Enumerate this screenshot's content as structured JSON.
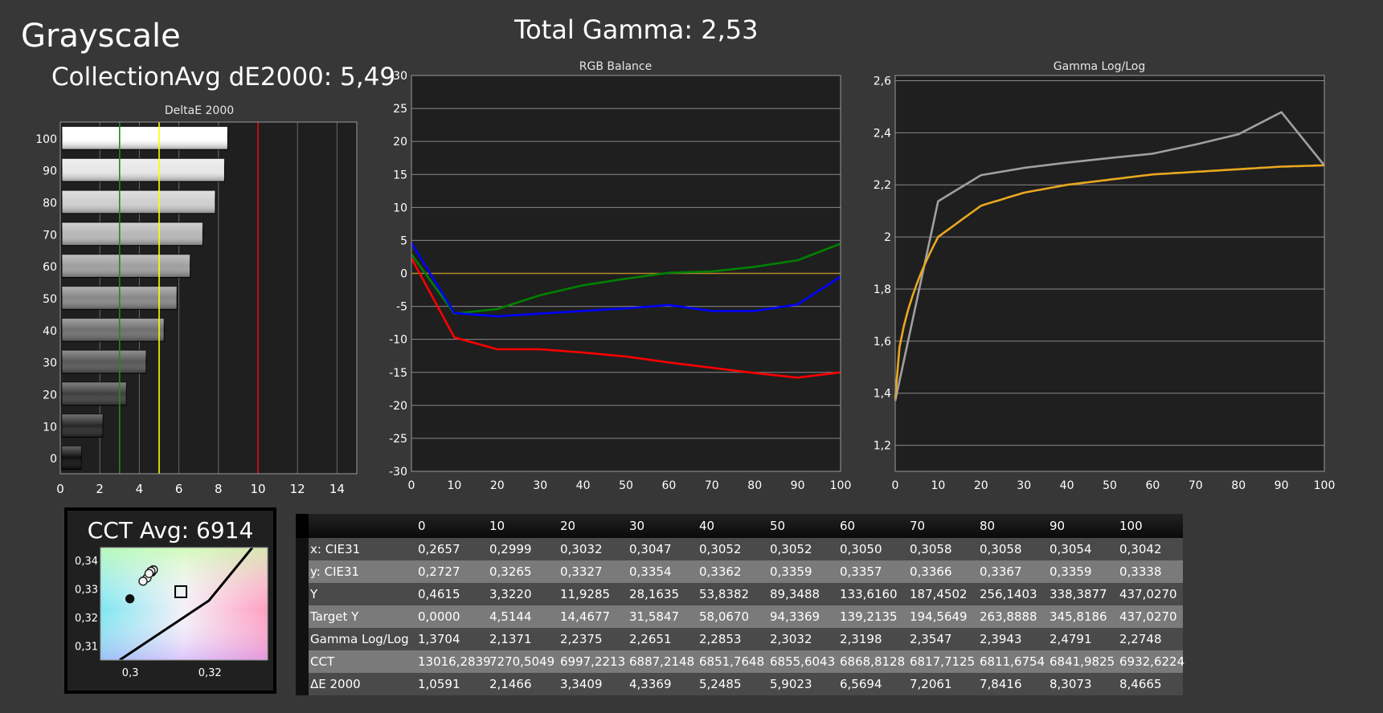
{
  "header": {
    "title": "Grayscale",
    "total_gamma": "Total Gamma: 2,53",
    "collection_avg": "CollectionAvg dE2000: 5,49"
  },
  "colors": {
    "red": "#ff0000",
    "green": "#008000",
    "blue": "#0000ff",
    "gamma_measured": "#a0a0a0",
    "gamma_target": "#e8a820",
    "limit_green": "#1e8a1e",
    "limit_yellow": "#ffff00",
    "limit_red": "#dd1111"
  },
  "chart_data": [
    {
      "type": "bar",
      "title": "DeltaE 2000",
      "orientation": "horizontal",
      "categories": [
        "0",
        "10",
        "20",
        "30",
        "40",
        "50",
        "60",
        "70",
        "80",
        "90",
        "100"
      ],
      "values": [
        1.06,
        2.15,
        3.34,
        4.34,
        5.25,
        5.9,
        6.57,
        7.21,
        7.84,
        8.31,
        8.47
      ],
      "xlim": [
        0,
        15
      ],
      "x_ticks": [
        "0",
        "2",
        "4",
        "6",
        "8",
        "10",
        "12",
        "14"
      ],
      "limit_lines": [
        3,
        5,
        10
      ]
    },
    {
      "type": "line",
      "title": "RGB Balance",
      "x": [
        0,
        10,
        20,
        30,
        40,
        50,
        60,
        70,
        80,
        90,
        100
      ],
      "series": [
        {
          "color": "#ff0000",
          "values": [
            2.3,
            -9.7,
            -11.5,
            -11.5,
            -12.0,
            -12.6,
            -13.5,
            -14.3,
            -15.1,
            -15.8,
            -15.0
          ]
        },
        {
          "color": "#008000",
          "values": [
            2.9,
            -6.1,
            -5.4,
            -3.3,
            -1.8,
            -0.8,
            0.1,
            0.3,
            1.0,
            2.0,
            4.5
          ]
        },
        {
          "color": "#0000ff",
          "values": [
            4.6,
            -6.0,
            -6.5,
            -6.1,
            -5.7,
            -5.3,
            -4.8,
            -5.7,
            -5.7,
            -4.7,
            -0.5
          ]
        }
      ],
      "reference_line": 0,
      "xlim": [
        0,
        100
      ],
      "ylim": [
        -30,
        30
      ],
      "x_ticks": [
        "0",
        "10",
        "20",
        "30",
        "40",
        "50",
        "60",
        "70",
        "80",
        "90",
        "100"
      ],
      "y_ticks": [
        "30",
        "25",
        "20",
        "15",
        "10",
        "5",
        "0",
        "-5",
        "-10",
        "-15",
        "-20",
        "-25",
        "-30"
      ]
    },
    {
      "type": "line",
      "title": "Gamma Log/Log",
      "x": [
        0,
        10,
        20,
        30,
        40,
        50,
        60,
        70,
        80,
        90,
        100
      ],
      "series": [
        {
          "color": "#a0a0a0",
          "values": [
            1.3704,
            2.1371,
            2.2375,
            2.2651,
            2.2853,
            2.3032,
            2.3198,
            2.3547,
            2.3943,
            2.4791,
            2.2748
          ]
        },
        {
          "color": "#e8a820",
          "values": [
            1.38,
            2.0,
            2.12,
            2.17,
            2.2,
            2.22,
            2.24,
            2.25,
            2.26,
            2.27,
            2.275
          ]
        }
      ],
      "xlim": [
        0,
        100
      ],
      "ylim": [
        1.1,
        2.62
      ],
      "x_ticks": [
        "0",
        "10",
        "20",
        "30",
        "40",
        "50",
        "60",
        "70",
        "80",
        "90",
        "100"
      ],
      "y_ticks": [
        "2,6",
        "2,4",
        "2,2",
        "2",
        "1,8",
        "1,6",
        "1,4",
        "1,2"
      ]
    },
    {
      "type": "scatter",
      "title": "CCT Avg: 6914",
      "points": [
        {
          "x": 0.3042,
          "y": 0.3338
        },
        {
          "x": 0.3054,
          "y": 0.3359
        },
        {
          "x": 0.3058,
          "y": 0.3367
        },
        {
          "x": 0.3058,
          "y": 0.3366
        },
        {
          "x": 0.305,
          "y": 0.3357
        },
        {
          "x": 0.3052,
          "y": 0.3359
        },
        {
          "x": 0.3052,
          "y": 0.3362
        },
        {
          "x": 0.3047,
          "y": 0.3354
        },
        {
          "x": 0.3032,
          "y": 0.3327
        },
        {
          "x": 0.2999,
          "y": 0.3265
        }
      ],
      "target": {
        "x": 0.3127,
        "y": 0.329
      },
      "xlim": [
        0.2925,
        0.3345
      ],
      "ylim": [
        0.305,
        0.3445
      ],
      "x_ticks": [
        "0,3",
        "0,32"
      ],
      "y_ticks": [
        "0,34",
        "0,33",
        "0,32",
        "0,31"
      ]
    }
  ],
  "table": {
    "header": [
      "0",
      "10",
      "20",
      "30",
      "40",
      "50",
      "60",
      "70",
      "80",
      "90",
      "100"
    ],
    "rows": [
      {
        "label": "x: CIE31",
        "values": [
          "0,2657",
          "0,2999",
          "0,3032",
          "0,3047",
          "0,3052",
          "0,3052",
          "0,3050",
          "0,3058",
          "0,3058",
          "0,3054",
          "0,3042"
        ]
      },
      {
        "label": "y: CIE31",
        "values": [
          "0,2727",
          "0,3265",
          "0,3327",
          "0,3354",
          "0,3362",
          "0,3359",
          "0,3357",
          "0,3366",
          "0,3367",
          "0,3359",
          "0,3338"
        ]
      },
      {
        "label": "Y",
        "values": [
          "0,4615",
          "3,3220",
          "11,9285",
          "28,1635",
          "53,8382",
          "89,3488",
          "133,6160",
          "187,4502",
          "256,1403",
          "338,3877",
          "437,0270"
        ]
      },
      {
        "label": "Target Y",
        "values": [
          "0,0000",
          "4,5144",
          "14,4677",
          "31,5847",
          "58,0670",
          "94,3369",
          "139,2135",
          "194,5649",
          "263,8888",
          "345,8186",
          "437,0270"
        ]
      },
      {
        "label": "Gamma Log/Log",
        "values": [
          "1,3704",
          "2,1371",
          "2,2375",
          "2,2651",
          "2,2853",
          "2,3032",
          "2,3198",
          "2,3547",
          "2,3943",
          "2,4791",
          "2,2748"
        ]
      },
      {
        "label": "CCT",
        "values": [
          "13016,2839",
          "7270,5049",
          "6997,2213",
          "6887,2148",
          "6851,7648",
          "6855,6043",
          "6868,8128",
          "6817,7125",
          "6811,6754",
          "6841,9825",
          "6932,6224"
        ]
      },
      {
        "label": "ΔE 2000",
        "values": [
          "1,0591",
          "2,1466",
          "3,3409",
          "4,3369",
          "5,2485",
          "5,9023",
          "6,5694",
          "7,2061",
          "7,8416",
          "8,3073",
          "8,4665"
        ]
      }
    ]
  }
}
